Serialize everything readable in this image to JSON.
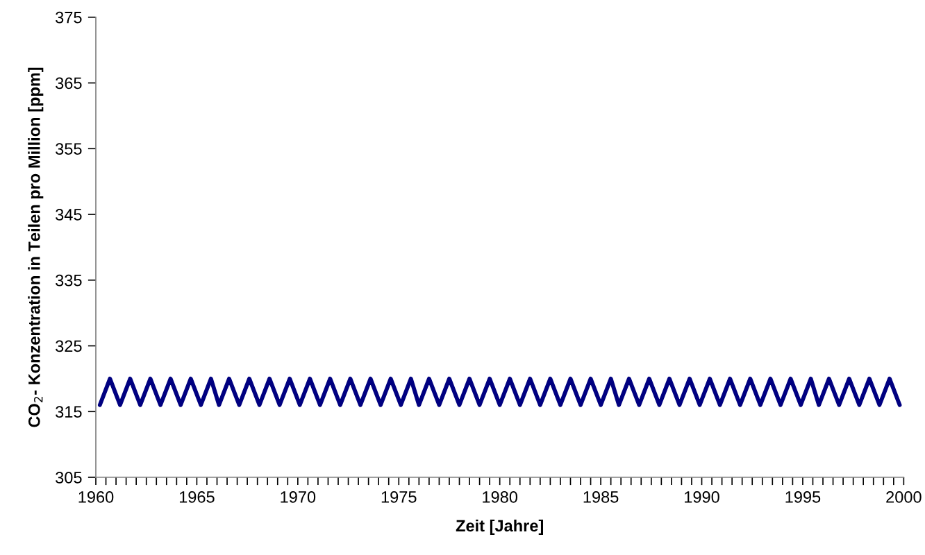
{
  "chart_data": {
    "type": "line",
    "xlabel": "Zeit [Jahre]",
    "ylabel": "CO$_{2}$- Konzentration in Teilen pro Million [ppm]",
    "xlim": [
      1960,
      2000
    ],
    "ylim": [
      305,
      375
    ],
    "yticks": [
      305,
      315,
      325,
      335,
      345,
      355,
      365,
      375
    ],
    "xticks": [
      1960,
      {
        "value": 1960.5,
        "label": null
      },
      {
        "value": 1961,
        "label": null
      },
      {
        "value": 1961.5,
        "label": null
      },
      {
        "value": 1962,
        "label": null
      },
      {
        "value": 1962.5,
        "label": null
      },
      {
        "value": 1963,
        "label": null
      },
      {
        "value": 1963.5,
        "label": null
      },
      {
        "value": 1964,
        "label": null
      },
      {
        "value": 1964.5,
        "label": null
      },
      1965,
      {
        "value": 1965.5,
        "label": null
      },
      {
        "value": 1966,
        "label": null
      },
      {
        "value": 1966.5,
        "label": null
      },
      {
        "value": 1967,
        "label": null
      },
      {
        "value": 1967.5,
        "label": null
      },
      {
        "value": 1968,
        "label": null
      },
      {
        "value": 1968.5,
        "label": null
      },
      {
        "value": 1969,
        "label": null
      },
      {
        "value": 1969.5,
        "label": null
      },
      1970,
      {
        "value": 1970.5,
        "label": null
      },
      {
        "value": 1971,
        "label": null
      },
      {
        "value": 1971.5,
        "label": null
      },
      {
        "value": 1972,
        "label": null
      },
      {
        "value": 1972.5,
        "label": null
      },
      {
        "value": 1973,
        "label": null
      },
      {
        "value": 1973.5,
        "label": null
      },
      {
        "value": 1974,
        "label": null
      },
      {
        "value": 1974.5,
        "label": null
      },
      1975,
      {
        "value": 1975.5,
        "label": null
      },
      {
        "value": 1976,
        "label": null
      },
      {
        "value": 1976.5,
        "label": null
      },
      {
        "value": 1977,
        "label": null
      },
      {
        "value": 1977.5,
        "label": null
      },
      {
        "value": 1978,
        "label": null
      },
      {
        "value": 1978.5,
        "label": null
      },
      {
        "value": 1979,
        "label": null
      },
      {
        "value": 1979.5,
        "label": null
      },
      1980,
      {
        "value": 1980.5,
        "label": null
      },
      {
        "value": 1981,
        "label": null
      },
      {
        "value": 1981.5,
        "label": null
      },
      {
        "value": 1982,
        "label": null
      },
      {
        "value": 1982.5,
        "label": null
      },
      {
        "value": 1983,
        "label": null
      },
      {
        "value": 1983.5,
        "label": null
      },
      {
        "value": 1984,
        "label": null
      },
      {
        "value": 1984.5,
        "label": null
      },
      1985,
      {
        "value": 1985.5,
        "label": null
      },
      {
        "value": 1986,
        "label": null
      },
      {
        "value": 1986.5,
        "label": null
      },
      {
        "value": 1987,
        "label": null
      },
      {
        "value": 1987.5,
        "label": null
      },
      {
        "value": 1988,
        "label": null
      },
      {
        "value": 1988.5,
        "label": null
      },
      {
        "value": 1989,
        "label": null
      },
      {
        "value": 1989.5,
        "label": null
      },
      1990,
      {
        "value": 1990.5,
        "label": null
      },
      {
        "value": 1991,
        "label": null
      },
      {
        "value": 1991.5,
        "label": null
      },
      {
        "value": 1992,
        "label": null
      },
      {
        "value": 1992.5,
        "label": null
      },
      {
        "value": 1993,
        "label": null
      },
      {
        "value": 1993.5,
        "label": null
      },
      {
        "value": 1994,
        "label": null
      },
      {
        "value": 1994.5,
        "label": null
      },
      1995,
      {
        "value": 1995.5,
        "label": null
      },
      {
        "value": 1996,
        "label": null
      },
      {
        "value": 1996.5,
        "label": null
      },
      {
        "value": 1997,
        "label": null
      },
      {
        "value": 1997.5,
        "label": null
      },
      {
        "value": 1998,
        "label": null
      },
      {
        "value": 1998.5,
        "label": null
      },
      {
        "value": 1999,
        "label": null
      },
      {
        "value": 1999.5,
        "label": null
      },
      2000
    ],
    "grid": false,
    "marker": "none",
    "line_style": "solid",
    "series": [
      {
        "color": "#000080",
        "x": [
          1960.2,
          1960.7,
          1961.2,
          1961.7,
          1962.2,
          1962.7,
          1963.2,
          1963.7,
          1964.2,
          1964.7,
          1965.2,
          1965.7,
          1966.1,
          1966.6,
          1967.1,
          1967.6,
          1968.1,
          1968.6,
          1969.1,
          1969.6,
          1970.1,
          1970.6,
          1971.1,
          1971.6,
          1972.1,
          1972.6,
          1973.1,
          1973.6,
          1974.1,
          1974.6,
          1975.1,
          1975.6,
          1976.0,
          1976.5,
          1977.0,
          1977.5,
          1978.0,
          1978.5,
          1979.0,
          1979.5,
          1980.0,
          1980.5,
          1981.0,
          1981.5,
          1982.0,
          1982.5,
          1983.0,
          1983.5,
          1984.0,
          1984.5,
          1985.0,
          1985.5,
          1985.9,
          1986.4,
          1986.9,
          1987.4,
          1987.9,
          1988.4,
          1988.9,
          1989.4,
          1989.9,
          1990.4,
          1990.9,
          1991.4,
          1991.9,
          1992.4,
          1992.9,
          1993.4,
          1993.9,
          1994.4,
          1994.9,
          1995.4,
          1995.8,
          1996.3,
          1996.8,
          1997.3,
          1997.8,
          1998.3,
          1998.8,
          1999.3,
          1999.8
        ],
        "values": [
          316,
          320,
          316,
          320,
          316,
          320,
          316,
          320,
          316,
          320,
          316,
          320,
          316,
          320,
          316,
          320,
          316,
          320,
          316,
          320,
          316,
          320,
          316,
          320,
          316,
          320,
          316,
          320,
          316,
          320,
          316,
          320,
          316,
          320,
          316,
          320,
          316,
          320,
          316,
          320,
          316,
          320,
          316,
          320,
          316,
          320,
          316,
          320,
          316,
          320,
          316,
          320,
          316,
          320,
          316,
          320,
          316,
          320,
          316,
          320,
          316,
          320,
          316,
          320,
          316,
          320,
          316,
          320,
          316,
          320,
          316,
          320,
          316,
          320,
          316,
          320,
          316,
          320,
          316,
          320,
          316
        ]
      }
    ]
  }
}
